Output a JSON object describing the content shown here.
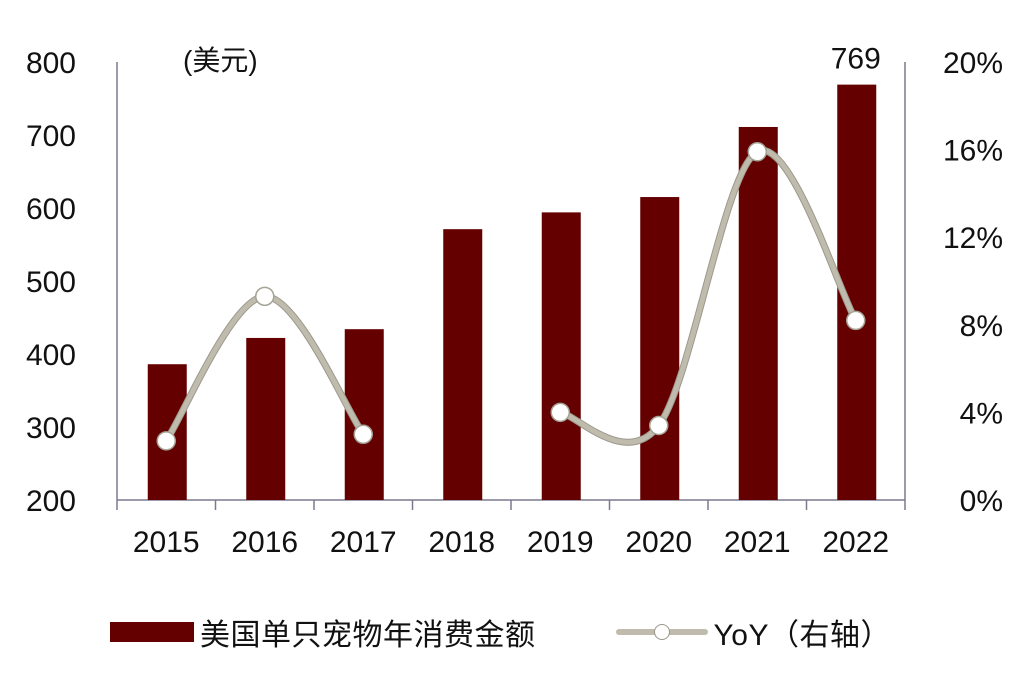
{
  "chart_data": {
    "type": "bar+line",
    "title": "",
    "unit_label": "(美元)",
    "categories": [
      "2015",
      "2016",
      "2017",
      "2018",
      "2019",
      "2020",
      "2021",
      "2022"
    ],
    "series": [
      {
        "name": "美国单只宠物年消费金额",
        "type": "bar",
        "axis": "left",
        "color": "#640000",
        "values": [
          386,
          422,
          434,
          571,
          594,
          615,
          711,
          769
        ]
      },
      {
        "name": "YoY（右轴）",
        "type": "line",
        "axis": "right",
        "color": "#bfbcae",
        "marker": "hollow-circle",
        "values": [
          2.7,
          9.3,
          3.0,
          null,
          4.0,
          3.4,
          15.9,
          8.2
        ]
      }
    ],
    "annotations": [
      {
        "category": "2022",
        "text": "769"
      }
    ],
    "left_axis": {
      "ylim": [
        200,
        800
      ],
      "ticks": [
        800,
        700,
        600,
        500,
        400,
        300,
        200
      ]
    },
    "right_axis": {
      "ylim": [
        0,
        20
      ],
      "ticks": [
        "20%",
        "16%",
        "12%",
        "8%",
        "4%",
        "0%"
      ],
      "values": [
        20,
        16,
        12,
        8,
        4,
        0
      ]
    },
    "xlabel": "",
    "ylabel": "",
    "grid": false,
    "legend_position": "bottom"
  },
  "legend": {
    "bar_label": "美国单只宠物年消费金额",
    "line_label": "YoY（右轴）"
  }
}
